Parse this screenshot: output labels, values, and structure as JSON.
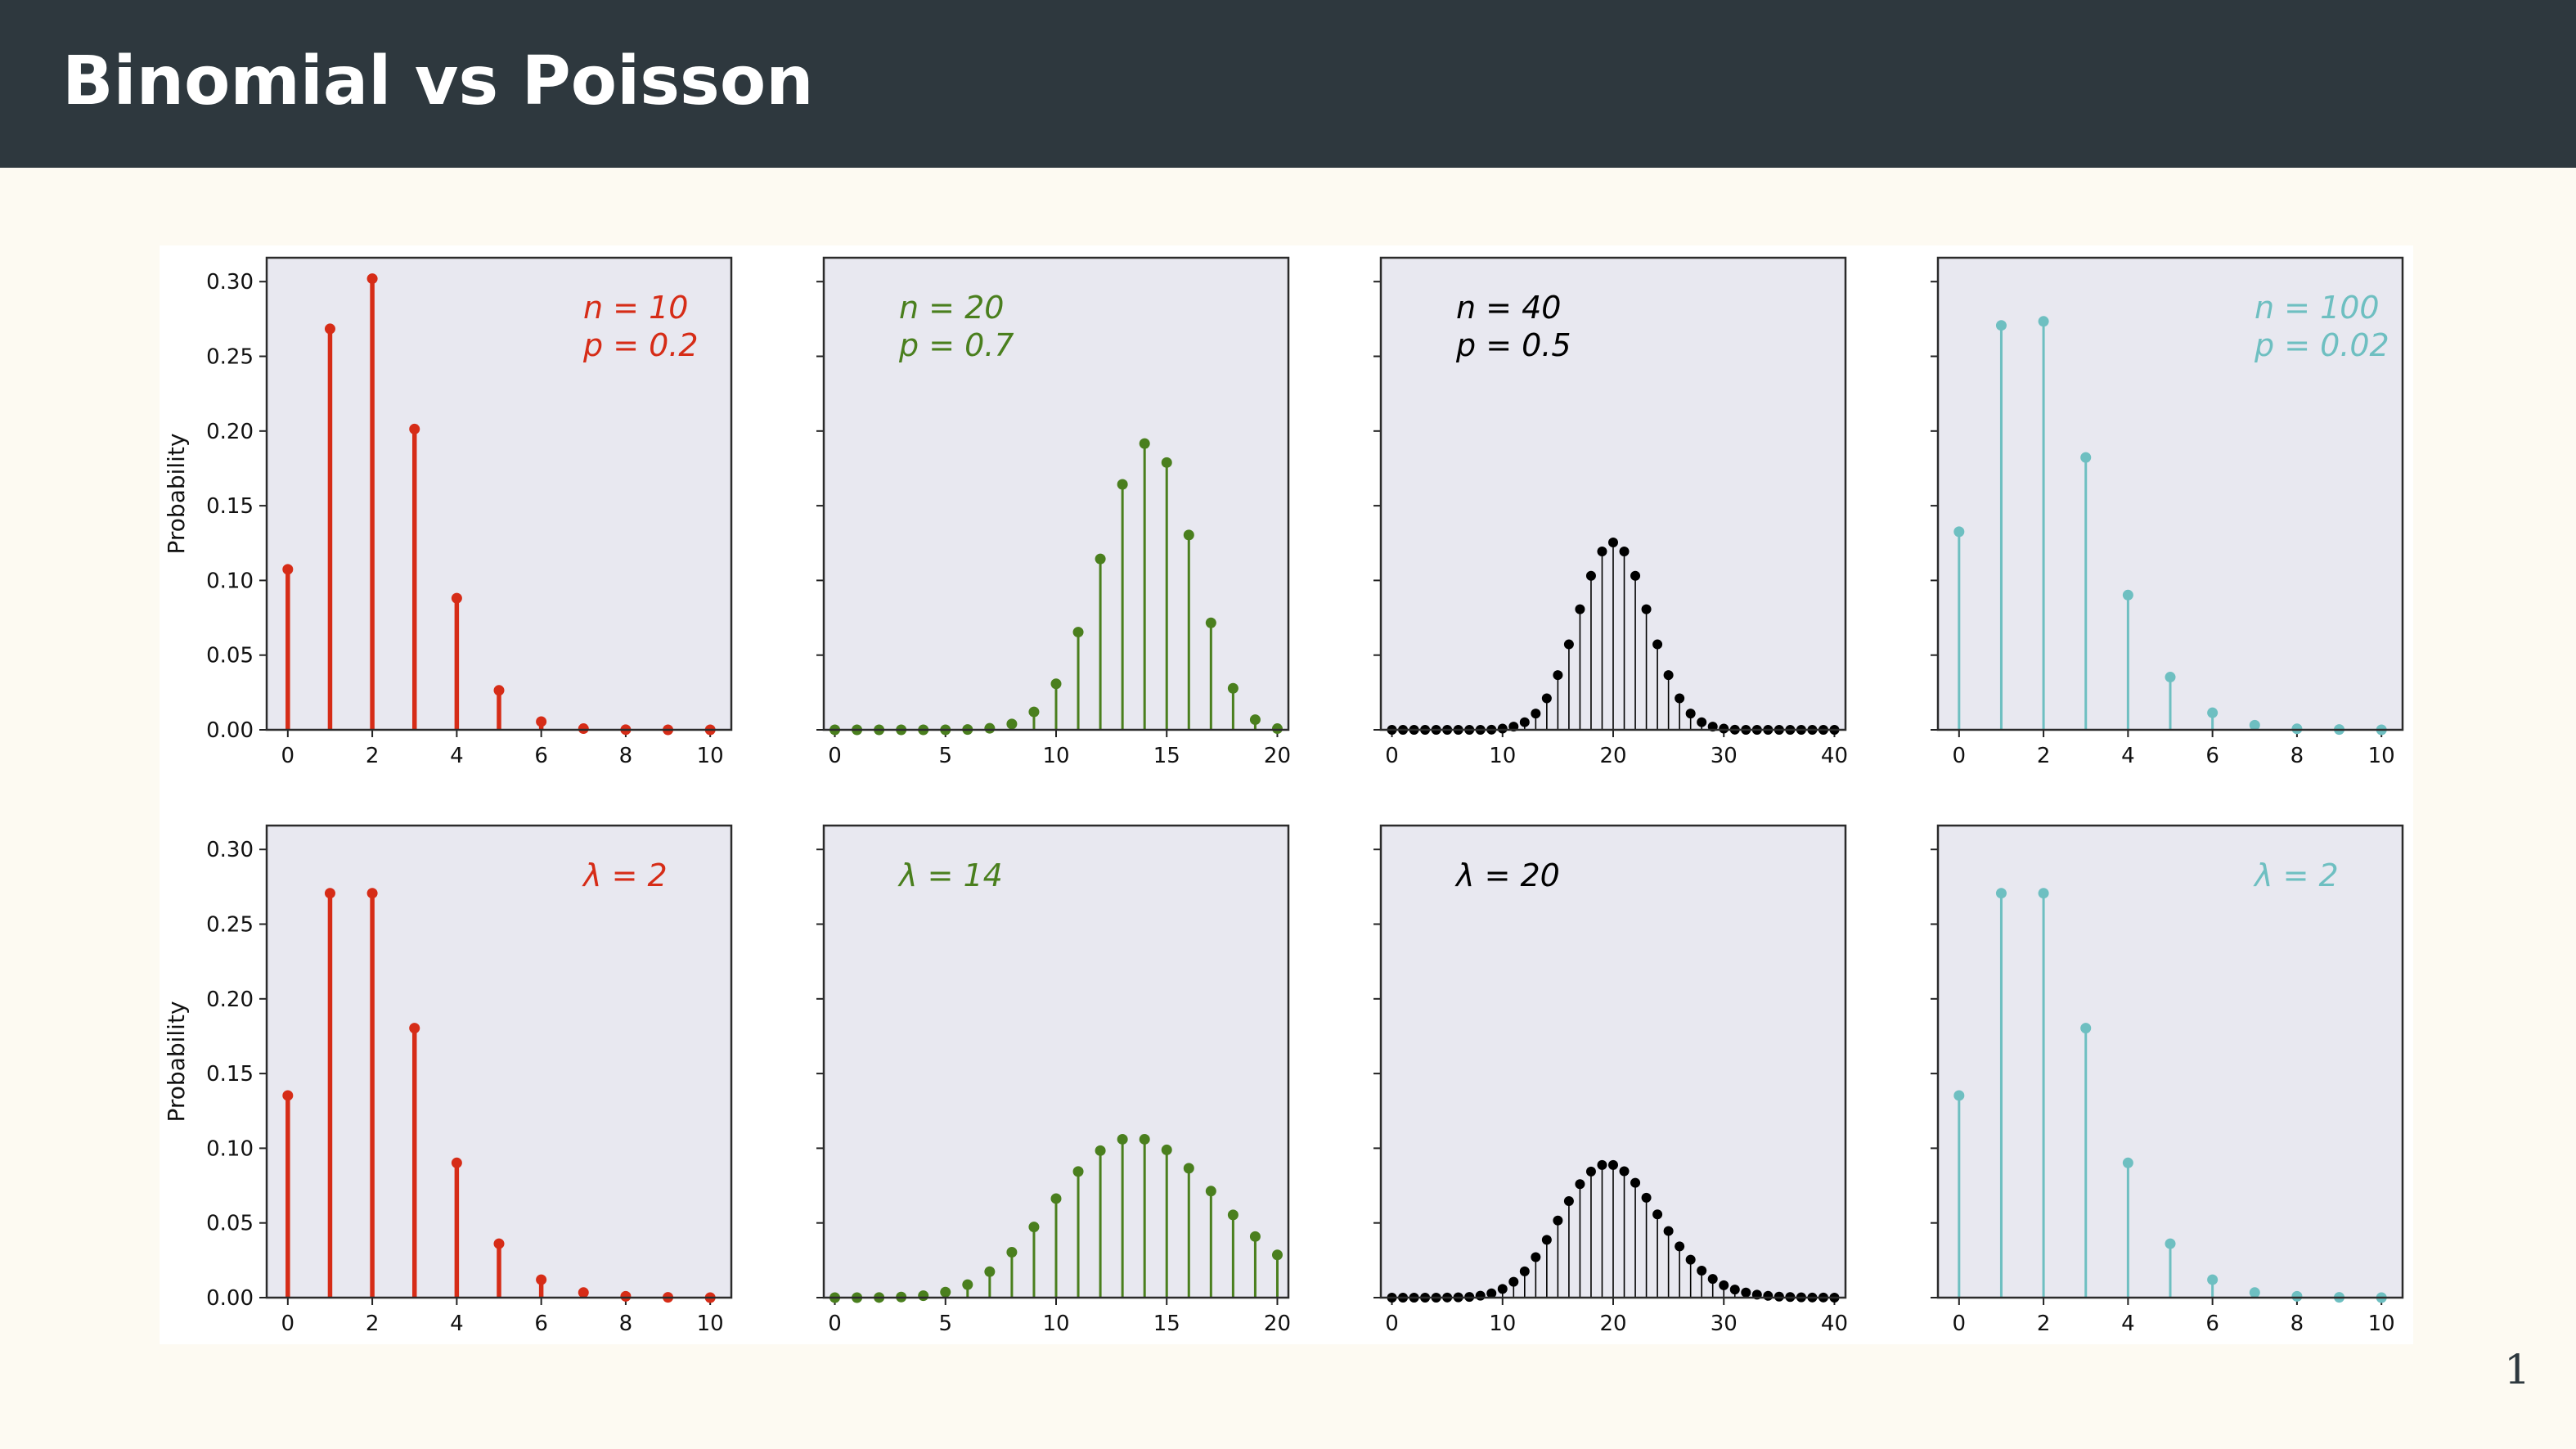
{
  "title": "Binomial vs Poisson",
  "page_number": "1",
  "colors": {
    "header_bg": "#2e383e",
    "page_bg": "#fdfaf2",
    "axes_bg": "#e8e8f0",
    "red": "#d62c17",
    "green": "#4a7f1e",
    "black": "#000000",
    "teal": "#6ebfc1"
  },
  "chart_data": [
    {
      "type": "stem",
      "row": 0,
      "col": 0,
      "color": "#d62c17",
      "marker": "large",
      "annotation": [
        "n = 10",
        "p = 0.2"
      ],
      "annotation_side": "right",
      "ylabel": "Probability",
      "xlim": [
        -0.5,
        10.5
      ],
      "ylim": [
        0,
        0.3
      ],
      "xticks": [
        0,
        2,
        4,
        6,
        8,
        10
      ],
      "yticks": [
        0.0,
        0.05,
        0.1,
        0.15,
        0.2,
        0.25,
        0.3
      ],
      "x": [
        0,
        1,
        2,
        3,
        4,
        5,
        6,
        7,
        8,
        9,
        10
      ],
      "y": [
        0.1074,
        0.2684,
        0.302,
        0.2013,
        0.0881,
        0.0264,
        0.0055,
        0.0008,
        0.0001,
        0.0,
        0.0
      ]
    },
    {
      "type": "stem",
      "row": 0,
      "col": 1,
      "color": "#4a7f1e",
      "marker": "medium",
      "annotation": [
        "n = 20",
        "p = 0.7"
      ],
      "annotation_side": "left",
      "ylabel": "",
      "xlim": [
        -0.5,
        20.5
      ],
      "ylim": [
        0,
        0.3
      ],
      "xticks": [
        0,
        5,
        10,
        15,
        20
      ],
      "yticks": [
        0.0,
        0.05,
        0.1,
        0.15,
        0.2,
        0.25,
        0.3
      ],
      "x": [
        0,
        1,
        2,
        3,
        4,
        5,
        6,
        7,
        8,
        9,
        10,
        11,
        12,
        13,
        14,
        15,
        16,
        17,
        18,
        19,
        20
      ],
      "y": [
        0,
        0,
        0,
        0,
        0,
        0,
        0.0002,
        0.001,
        0.0039,
        0.012,
        0.0308,
        0.0654,
        0.1144,
        0.1643,
        0.1916,
        0.1789,
        0.1304,
        0.0716,
        0.0278,
        0.0068,
        0.0008
      ]
    },
    {
      "type": "stem",
      "row": 0,
      "col": 2,
      "color": "#000000",
      "marker": "small",
      "annotation": [
        "n = 40",
        "p = 0.5"
      ],
      "annotation_side": "left",
      "ylabel": "",
      "xlim": [
        -1,
        41
      ],
      "ylim": [
        0,
        0.3
      ],
      "xticks": [
        0,
        10,
        20,
        30,
        40
      ],
      "yticks": [
        0.0,
        0.05,
        0.1,
        0.15,
        0.2,
        0.25,
        0.3
      ],
      "x": [
        0,
        1,
        2,
        3,
        4,
        5,
        6,
        7,
        8,
        9,
        10,
        11,
        12,
        13,
        14,
        15,
        16,
        17,
        18,
        19,
        20,
        21,
        22,
        23,
        24,
        25,
        26,
        27,
        28,
        29,
        30,
        31,
        32,
        33,
        34,
        35,
        36,
        37,
        38,
        39,
        40
      ],
      "y": [
        0,
        0,
        0,
        0,
        0,
        0,
        0,
        0,
        0,
        0.0001,
        0.0008,
        0.0021,
        0.0051,
        0.0109,
        0.0211,
        0.0366,
        0.0572,
        0.0807,
        0.1031,
        0.1194,
        0.1254,
        0.1194,
        0.1031,
        0.0807,
        0.0572,
        0.0366,
        0.0211,
        0.0109,
        0.0051,
        0.0021,
        0.0008,
        0.0001,
        0,
        0,
        0,
        0,
        0,
        0,
        0,
        0,
        0
      ]
    },
    {
      "type": "stem",
      "row": 0,
      "col": 3,
      "color": "#6ebfc1",
      "marker": "medium",
      "annotation": [
        "n = 100",
        "p = 0.02"
      ],
      "annotation_side": "right",
      "ylabel": "",
      "xlim": [
        -0.5,
        10.5
      ],
      "ylim": [
        0,
        0.3
      ],
      "xticks": [
        0,
        2,
        4,
        6,
        8,
        10
      ],
      "yticks": [
        0.0,
        0.05,
        0.1,
        0.15,
        0.2,
        0.25,
        0.3
      ],
      "x": [
        0,
        1,
        2,
        3,
        4,
        5,
        6,
        7,
        8,
        9,
        10
      ],
      "y": [
        0.1326,
        0.2707,
        0.2734,
        0.1823,
        0.0902,
        0.0353,
        0.0114,
        0.0031,
        0.0007,
        0.0002,
        0.0
      ]
    },
    {
      "type": "stem",
      "row": 1,
      "col": 0,
      "color": "#d62c17",
      "marker": "large",
      "annotation": [
        "λ = 2"
      ],
      "annotation_side": "right",
      "ylabel": "Probability",
      "xlim": [
        -0.5,
        10.5
      ],
      "ylim": [
        0,
        0.3
      ],
      "xticks": [
        0,
        2,
        4,
        6,
        8,
        10
      ],
      "yticks": [
        0.0,
        0.05,
        0.1,
        0.15,
        0.2,
        0.25,
        0.3
      ],
      "x": [
        0,
        1,
        2,
        3,
        4,
        5,
        6,
        7,
        8,
        9,
        10
      ],
      "y": [
        0.1353,
        0.2707,
        0.2707,
        0.1804,
        0.0902,
        0.0361,
        0.012,
        0.0034,
        0.0009,
        0.0002,
        0.0
      ]
    },
    {
      "type": "stem",
      "row": 1,
      "col": 1,
      "color": "#4a7f1e",
      "marker": "medium",
      "annotation": [
        "λ = 14"
      ],
      "annotation_side": "left",
      "ylabel": "",
      "xlim": [
        -0.5,
        20.5
      ],
      "ylim": [
        0,
        0.3
      ],
      "xticks": [
        0,
        5,
        10,
        15,
        20
      ],
      "yticks": [
        0.0,
        0.05,
        0.1,
        0.15,
        0.2,
        0.25,
        0.3
      ],
      "x": [
        0,
        1,
        2,
        3,
        4,
        5,
        6,
        7,
        8,
        9,
        10,
        11,
        12,
        13,
        14,
        15,
        16,
        17,
        18,
        19,
        20
      ],
      "y": [
        0,
        0,
        0.0001,
        0.0004,
        0.0013,
        0.0037,
        0.0087,
        0.0174,
        0.0304,
        0.0473,
        0.0663,
        0.0844,
        0.0984,
        0.106,
        0.106,
        0.0989,
        0.0866,
        0.0713,
        0.0554,
        0.0409,
        0.0286
      ]
    },
    {
      "type": "stem",
      "row": 1,
      "col": 2,
      "color": "#000000",
      "marker": "small",
      "annotation": [
        "λ = 20"
      ],
      "annotation_side": "left",
      "ylabel": "",
      "xlim": [
        -1,
        41
      ],
      "ylim": [
        0,
        0.3
      ],
      "xticks": [
        0,
        10,
        20,
        30,
        40
      ],
      "yticks": [
        0.0,
        0.05,
        0.1,
        0.15,
        0.2,
        0.25,
        0.3
      ],
      "x": [
        0,
        1,
        2,
        3,
        4,
        5,
        6,
        7,
        8,
        9,
        10,
        11,
        12,
        13,
        14,
        15,
        16,
        17,
        18,
        19,
        20,
        21,
        22,
        23,
        24,
        25,
        26,
        27,
        28,
        29,
        30,
        31,
        32,
        33,
        34,
        35,
        36,
        37,
        38,
        39,
        40
      ],
      "y": [
        0,
        0,
        0,
        0,
        0,
        0.0001,
        0.0002,
        0.0005,
        0.0013,
        0.0029,
        0.0058,
        0.0106,
        0.0176,
        0.0271,
        0.0387,
        0.0516,
        0.0646,
        0.076,
        0.0844,
        0.0888,
        0.0888,
        0.0846,
        0.0769,
        0.0669,
        0.0557,
        0.0446,
        0.0343,
        0.0254,
        0.0181,
        0.0125,
        0.0083,
        0.0054,
        0.0034,
        0.002,
        0.0012,
        0.0007,
        0.0004,
        0.0002,
        0.0001,
        0.0001,
        0
      ]
    },
    {
      "type": "stem",
      "row": 1,
      "col": 3,
      "color": "#6ebfc1",
      "marker": "medium",
      "annotation": [
        "λ = 2"
      ],
      "annotation_side": "right",
      "ylabel": "",
      "xlim": [
        -0.5,
        10.5
      ],
      "ylim": [
        0,
        0.3
      ],
      "xticks": [
        0,
        2,
        4,
        6,
        8,
        10
      ],
      "yticks": [
        0.0,
        0.05,
        0.1,
        0.15,
        0.2,
        0.25,
        0.3
      ],
      "x": [
        0,
        1,
        2,
        3,
        4,
        5,
        6,
        7,
        8,
        9,
        10
      ],
      "y": [
        0.1353,
        0.2707,
        0.2707,
        0.1804,
        0.0902,
        0.0361,
        0.012,
        0.0034,
        0.0009,
        0.0002,
        0.0
      ]
    }
  ]
}
